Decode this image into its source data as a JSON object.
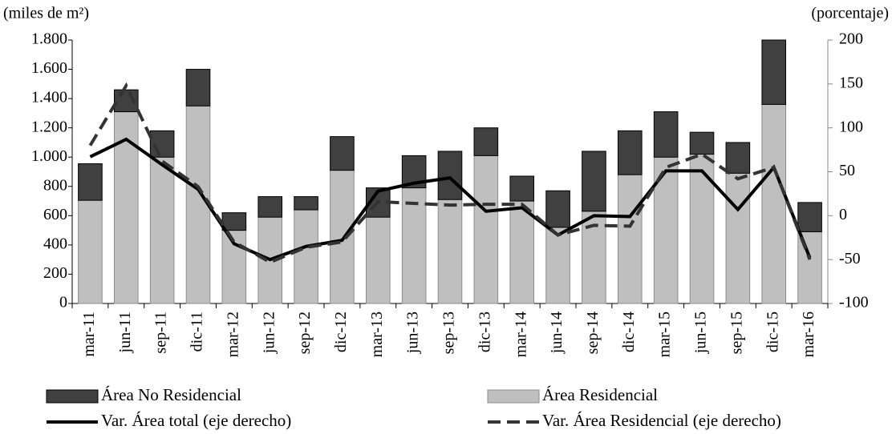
{
  "chart_data": {
    "type": "bar-line",
    "y_label": "(miles de m²)",
    "y2_label": "(porcentaje)",
    "categories": [
      "mar-11",
      "jun-11",
      "sep-11",
      "dic-11",
      "mar-12",
      "jun-12",
      "sep-12",
      "dic-12",
      "mar-13",
      "jun-13",
      "sep-13",
      "dic-13",
      "mar-14",
      "jun-14",
      "sep-14",
      "dic-14",
      "mar-15",
      "jun-15",
      "sep-15",
      "dic-15",
      "mar-16"
    ],
    "series": [
      {
        "name": "Área No Residencial",
        "type": "bar",
        "color": "#404040",
        "values": [
          250,
          150,
          180,
          250,
          120,
          140,
          90,
          230,
          200,
          220,
          330,
          190,
          170,
          250,
          410,
          300,
          310,
          150,
          210,
          440,
          200
        ]
      },
      {
        "name": "Área Residencial",
        "type": "bar",
        "color": "#bfbfbf",
        "values": [
          705,
          1310,
          1000,
          1350,
          500,
          590,
          640,
          910,
          590,
          790,
          710,
          1010,
          700,
          520,
          630,
          880,
          1000,
          1020,
          890,
          1360,
          490
        ]
      },
      {
        "name": "Var. Área total (eje derecho)",
        "type": "line",
        "axis": "y2",
        "color": "#000000",
        "dashed": false,
        "values": [
          67,
          87,
          58,
          30,
          -32,
          -50,
          -35,
          -28,
          28,
          37,
          43,
          5,
          9,
          -22,
          0,
          -1,
          51,
          51,
          7,
          55,
          -48
        ]
      },
      {
        "name": "Var. Área Residencial (eje derecho)",
        "type": "line",
        "axis": "y2",
        "color": "#333333",
        "dashed": true,
        "values": [
          80,
          148,
          62,
          33,
          -30,
          -53,
          -36,
          -30,
          16,
          14,
          12,
          13,
          13,
          -22,
          -11,
          -12,
          55,
          70,
          42,
          55,
          -50
        ]
      }
    ],
    "ylim": [
      0,
      1800
    ],
    "yticks": [
      0,
      200,
      400,
      600,
      800,
      {
        "value": 1000,
        "label": "1.000"
      },
      {
        "value": 1200,
        "label": "1.200"
      },
      {
        "value": 1400,
        "label": "1.400"
      },
      {
        "value": 1600,
        "label": "1.600"
      },
      {
        "value": 1800,
        "label": "1.800"
      }
    ],
    "y2lim": [
      -100,
      200
    ],
    "y2ticks": [
      -100,
      -50,
      0,
      50,
      100,
      150,
      200
    ]
  }
}
